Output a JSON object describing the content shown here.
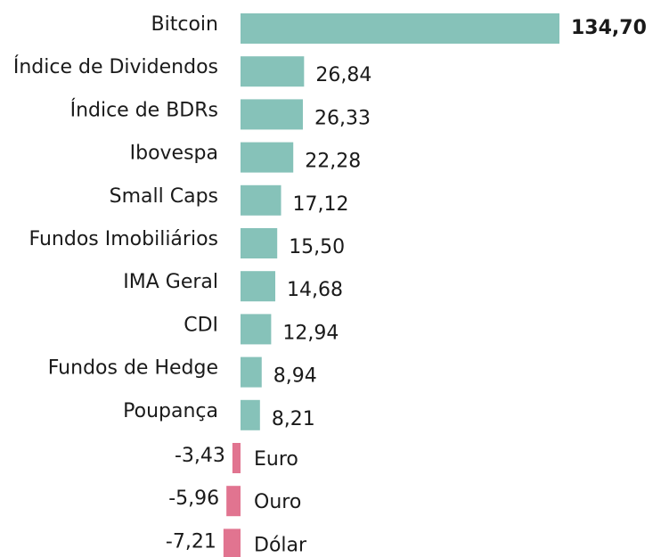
{
  "chart_data": {
    "type": "barh",
    "categories": [
      "Bitcoin",
      "Índice de Dividendos",
      "Índice de BDRs",
      "Ibovespa",
      "Small Caps",
      "Fundos Imobiliários",
      "IMA Geral",
      "CDI",
      "Fundos de Hedge",
      "Poupança",
      "Euro",
      "Ouro",
      "Dólar"
    ],
    "values": [
      134.7,
      26.84,
      26.33,
      22.28,
      17.12,
      15.5,
      14.68,
      12.94,
      8.94,
      8.21,
      -3.43,
      -5.96,
      -7.21
    ],
    "value_labels": [
      "134,70",
      "26,84",
      "26,33",
      "22,28",
      "17,12",
      "15,50",
      "14,68",
      "12,94",
      "8,94",
      "8,21",
      "-3,43",
      "-5,96",
      "-7,21"
    ],
    "color": "#86c2b9",
    "negative_color": "#e17490"
  }
}
